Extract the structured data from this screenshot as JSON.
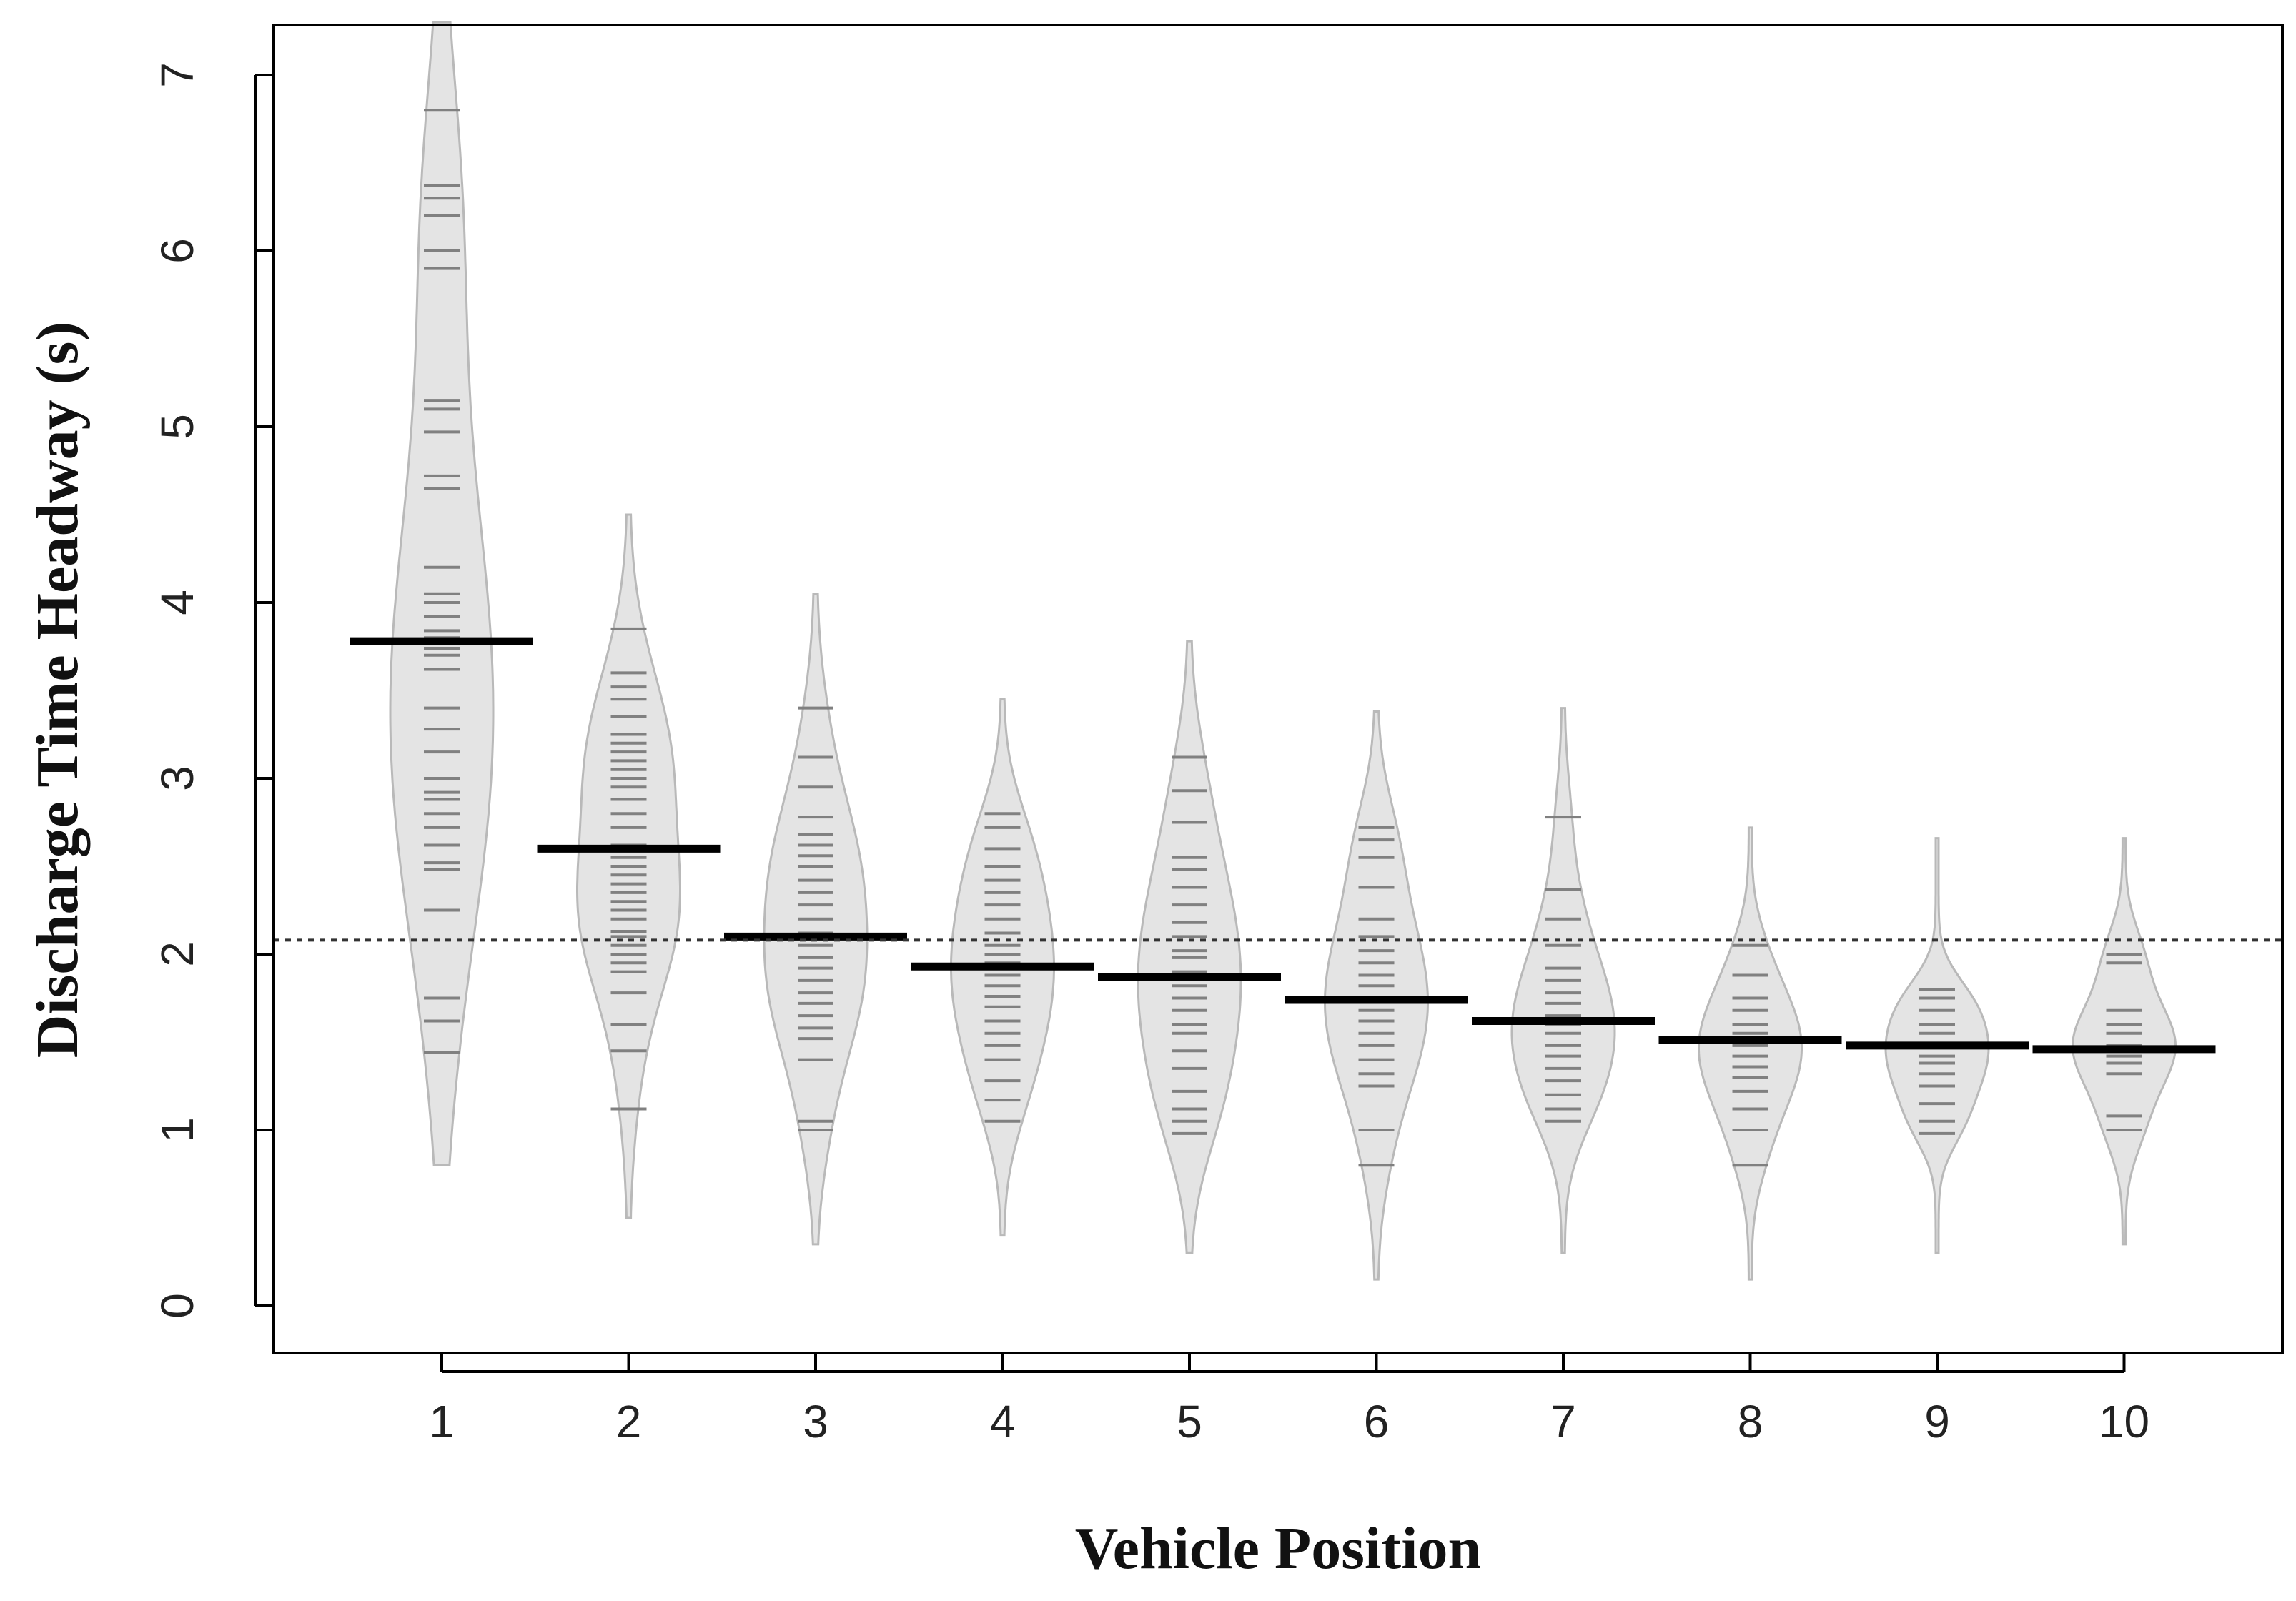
{
  "chart_data": {
    "type": "beanplot",
    "xlabel": "Vehicle Position",
    "ylabel": "Discharge Time Headway (s)",
    "ylim": [
      0,
      7
    ],
    "yticks": [
      0,
      1,
      2,
      3,
      4,
      5,
      6,
      7
    ],
    "categories": [
      "1",
      "2",
      "3",
      "4",
      "5",
      "6",
      "7",
      "8",
      "9",
      "10"
    ],
    "overall_mean": 2.08,
    "grid": false,
    "colors": {
      "bean_fill": "#e4e4e4",
      "bean_edge": "#b9b9b9",
      "observation": "#808080",
      "mean": "#000000"
    },
    "beans": [
      {
        "position": "1",
        "mean": 3.78,
        "min": 0.8,
        "max": 7.3,
        "observations": [
          1.44,
          1.62,
          1.75,
          2.25,
          2.48,
          2.52,
          2.62,
          2.72,
          2.8,
          2.88,
          2.92,
          3.0,
          3.15,
          3.28,
          3.4,
          3.62,
          3.7,
          3.74,
          3.8,
          3.84,
          3.92,
          4.0,
          4.05,
          4.2,
          4.65,
          4.72,
          4.97,
          5.1,
          5.15,
          5.9,
          6.0,
          6.2,
          6.3,
          6.37,
          6.8
        ]
      },
      {
        "position": "2",
        "mean": 2.6,
        "min": 0.5,
        "max": 4.5,
        "observations": [
          1.12,
          1.45,
          1.6,
          1.78,
          1.9,
          1.95,
          2.0,
          2.05,
          2.1,
          2.13,
          2.2,
          2.25,
          2.3,
          2.35,
          2.4,
          2.45,
          2.5,
          2.55,
          2.62,
          2.72,
          2.8,
          2.88,
          2.95,
          3.0,
          3.05,
          3.1,
          3.15,
          3.2,
          3.25,
          3.35,
          3.45,
          3.52,
          3.6,
          3.85
        ]
      },
      {
        "position": "3",
        "mean": 2.1,
        "min": 0.35,
        "max": 4.05,
        "observations": [
          1.0,
          1.05,
          1.4,
          1.52,
          1.58,
          1.65,
          1.72,
          1.78,
          1.85,
          1.92,
          1.98,
          2.05,
          2.12,
          2.2,
          2.28,
          2.35,
          2.42,
          2.5,
          2.56,
          2.62,
          2.68,
          2.78,
          2.95,
          3.12,
          3.4
        ]
      },
      {
        "position": "4",
        "mean": 1.93,
        "min": 0.4,
        "max": 3.45,
        "observations": [
          1.05,
          1.17,
          1.28,
          1.4,
          1.48,
          1.55,
          1.62,
          1.7,
          1.76,
          1.82,
          1.88,
          1.95,
          2.0,
          2.05,
          2.12,
          2.2,
          2.28,
          2.35,
          2.42,
          2.5,
          2.6,
          2.72,
          2.8
        ]
      },
      {
        "position": "5",
        "mean": 1.87,
        "min": 0.3,
        "max": 3.78,
        "observations": [
          0.98,
          1.05,
          1.12,
          1.22,
          1.35,
          1.45,
          1.55,
          1.6,
          1.68,
          1.75,
          1.82,
          1.9,
          1.98,
          2.02,
          2.1,
          2.18,
          2.28,
          2.38,
          2.48,
          2.55,
          2.75,
          2.93,
          3.12
        ]
      },
      {
        "position": "6",
        "mean": 1.74,
        "min": 0.15,
        "max": 3.38,
        "observations": [
          0.8,
          1.0,
          1.25,
          1.32,
          1.4,
          1.48,
          1.55,
          1.62,
          1.68,
          1.75,
          1.82,
          1.88,
          1.95,
          2.02,
          2.1,
          2.2,
          2.38,
          2.55,
          2.65,
          2.72
        ]
      },
      {
        "position": "7",
        "mean": 1.62,
        "min": 0.3,
        "max": 3.4,
        "observations": [
          1.05,
          1.12,
          1.2,
          1.28,
          1.35,
          1.42,
          1.48,
          1.55,
          1.6,
          1.65,
          1.72,
          1.78,
          1.85,
          1.92,
          2.05,
          2.2,
          2.37,
          2.78
        ]
      },
      {
        "position": "8",
        "mean": 1.51,
        "min": 0.15,
        "max": 2.72,
        "observations": [
          0.8,
          1.0,
          1.12,
          1.22,
          1.3,
          1.36,
          1.42,
          1.48,
          1.55,
          1.6,
          1.68,
          1.75,
          1.88,
          2.05
        ]
      },
      {
        "position": "9",
        "mean": 1.48,
        "min": 0.3,
        "max": 2.66,
        "observations": [
          0.98,
          1.05,
          1.15,
          1.25,
          1.32,
          1.38,
          1.42,
          1.48,
          1.55,
          1.6,
          1.68,
          1.75,
          1.8
        ]
      },
      {
        "position": "10",
        "mean": 1.46,
        "min": 0.35,
        "max": 2.66,
        "observations": [
          1.0,
          1.08,
          1.32,
          1.38,
          1.42,
          1.48,
          1.55,
          1.6,
          1.68,
          1.95,
          2.0
        ]
      }
    ]
  }
}
